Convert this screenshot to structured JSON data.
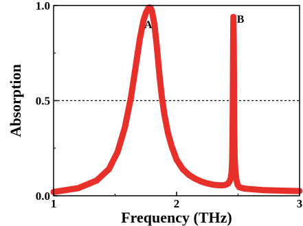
{
  "chart_data": {
    "type": "line",
    "xlabel": "Frequency (THz)",
    "ylabel": "Absorption",
    "xlim": [
      1,
      3
    ],
    "ylim": [
      0,
      1.0
    ],
    "xticks": [
      1,
      2,
      3
    ],
    "xtick_labels": [
      "1",
      "2",
      "3"
    ],
    "yticks": [
      0.0,
      0.5,
      1.0
    ],
    "ytick_labels": [
      "0.0",
      "0.5",
      "1.0"
    ],
    "grid": false,
    "reference_line": {
      "y": 0.5,
      "style": "dashed",
      "color": "#000000"
    },
    "series": [
      {
        "color": "#e8302a",
        "marker": "square",
        "x": [
          1.0,
          1.2,
          1.35,
          1.45,
          1.52,
          1.58,
          1.63,
          1.67,
          1.7,
          1.73,
          1.75,
          1.77,
          1.78,
          1.79,
          1.8,
          1.82,
          1.84,
          1.86,
          1.88,
          1.9,
          1.93,
          1.96,
          2.0,
          2.05,
          2.1,
          2.15,
          2.2,
          2.25,
          2.3,
          2.35,
          2.38,
          2.4,
          2.42,
          2.43,
          2.44,
          2.447,
          2.452,
          2.455,
          2.458,
          2.46,
          2.462,
          2.465,
          2.468,
          2.472,
          2.478,
          2.485,
          2.495,
          2.51,
          2.55,
          2.6,
          2.7,
          2.8,
          2.9,
          3.0
        ],
        "y": [
          0.02,
          0.04,
          0.08,
          0.14,
          0.23,
          0.36,
          0.52,
          0.69,
          0.82,
          0.92,
          0.96,
          0.985,
          0.99,
          0.985,
          0.97,
          0.9,
          0.78,
          0.64,
          0.52,
          0.43,
          0.33,
          0.26,
          0.19,
          0.14,
          0.11,
          0.09,
          0.075,
          0.065,
          0.058,
          0.055,
          0.055,
          0.058,
          0.065,
          0.075,
          0.09,
          0.12,
          0.18,
          0.3,
          0.55,
          0.8,
          0.94,
          0.8,
          0.4,
          0.2,
          0.13,
          0.09,
          0.06,
          0.045,
          0.038,
          0.035,
          0.03,
          0.028,
          0.026,
          0.025
        ]
      }
    ],
    "annotations": [
      {
        "text": "A",
        "x": 1.77,
        "y": 0.88
      },
      {
        "text": "B",
        "x": 2.49,
        "y": 0.91
      }
    ]
  }
}
